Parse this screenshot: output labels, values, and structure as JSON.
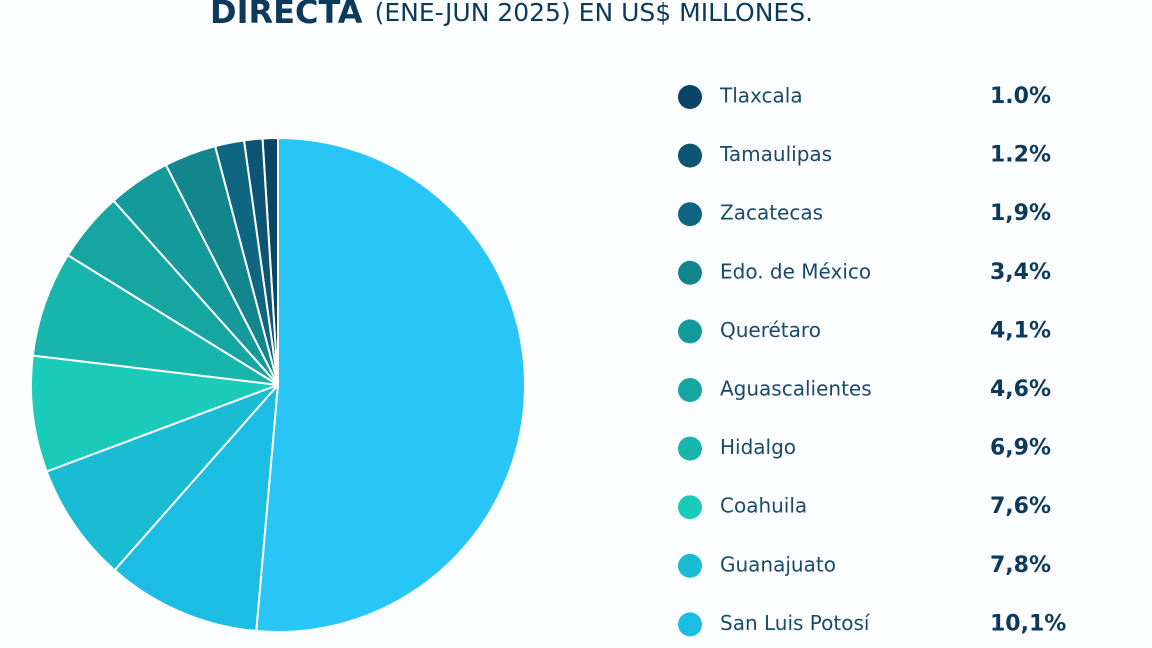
{
  "chart_data": {
    "type": "pie",
    "title": "DIRECTA",
    "subtitle": "(ENE-JUN 2025) EN US$ MILLONES.",
    "categories": [
      "Tlaxcala",
      "Tamaulipas",
      "Zacatecas",
      "Edo. de México",
      "Querétaro",
      "Aguascalientes",
      "Hidalgo",
      "Coahuila",
      "Guanajuato",
      "San Luis Potosí",
      null
    ],
    "values": [
      1.0,
      1.2,
      1.9,
      3.4,
      4.1,
      4.6,
      6.9,
      7.6,
      7.8,
      10.1,
      51.4
    ],
    "value_labels": [
      "1.0%",
      "1.2%",
      "1,9%",
      "3,4%",
      "4,1%",
      "4,6%",
      "6,9%",
      "7,6%",
      "7,8%",
      "10,1%",
      null
    ],
    "colors": [
      "#0b4565",
      "#0c5573",
      "#0e6680",
      "#12868c",
      "#159a9b",
      "#16a6a2",
      "#18b5ad",
      "#1bcbba",
      "#19bcd3",
      "#1bbde3",
      "#27c6f6"
    ]
  }
}
